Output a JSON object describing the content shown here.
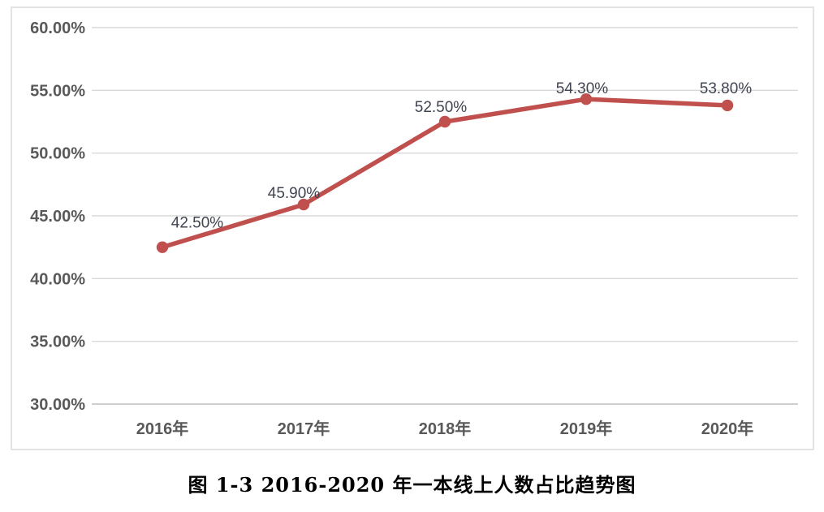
{
  "caption": "图 1-3 2016-2020 年一本线上人数占比趋势图",
  "chart_data": {
    "type": "line",
    "title": "",
    "xlabel": "",
    "ylabel": "",
    "categories": [
      "2016年",
      "2017年",
      "2018年",
      "2019年",
      "2020年"
    ],
    "values": [
      42.5,
      45.9,
      52.5,
      54.3,
      53.8
    ],
    "data_labels": [
      "42.50%",
      "45.90%",
      "52.50%",
      "54.30%",
      "53.80%"
    ],
    "ylim": [
      30,
      60
    ],
    "y_ticks": {
      "values": [
        60,
        55,
        50,
        45,
        40,
        35,
        30
      ],
      "labels": [
        "60.00%",
        "55.00%",
        "50.00%",
        "45.00%",
        "40.00%",
        "35.00%",
        "30.00%"
      ]
    },
    "grid": true,
    "legend": "none",
    "colors": {
      "line": "#C0504D",
      "marker": "#C0504D",
      "gridline": "#D9D9D9",
      "axis_line": "#BFBFBF",
      "tick_label": "#595959",
      "data_label": "#3F4450",
      "frame_border": "#E3E3E3",
      "caption_text": "#000000"
    },
    "label_offsets": {
      "dx": [
        43,
        -12,
        -5,
        -5,
        -2
      ],
      "dy": [
        -24,
        -8,
        -12,
        -7,
        -15
      ]
    }
  }
}
